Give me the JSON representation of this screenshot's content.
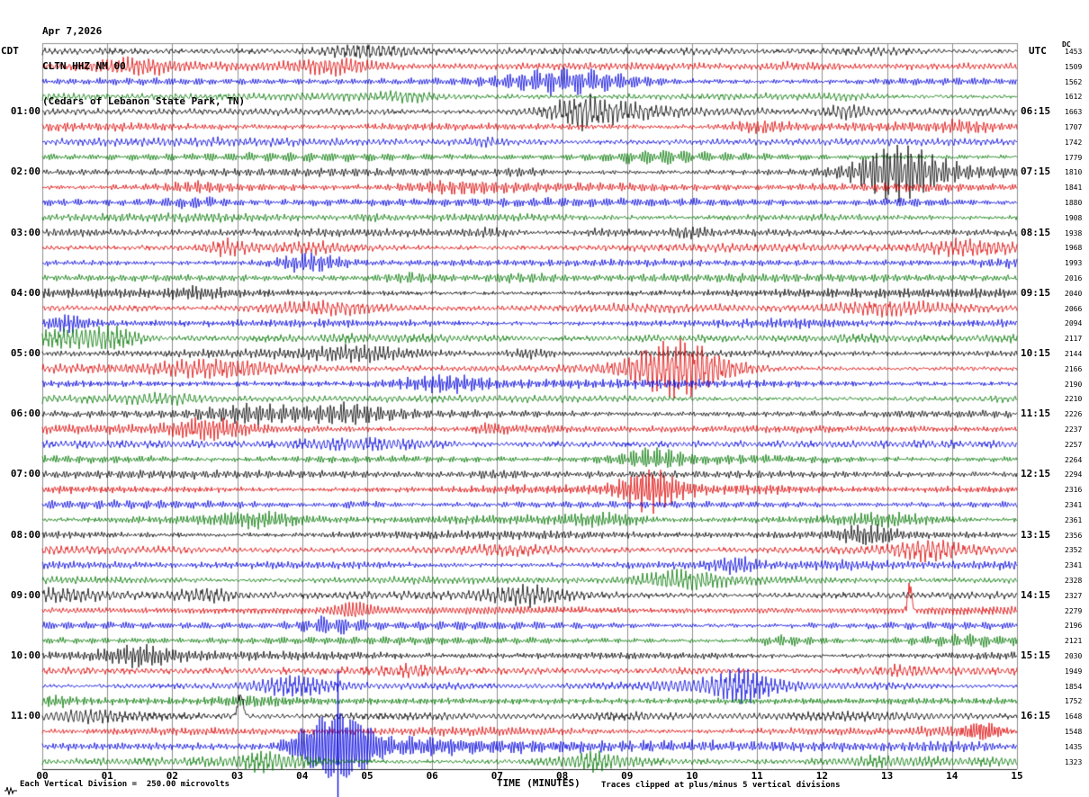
{
  "header": {
    "date": "Apr 7,2026",
    "station_code": "CLTN HHZ NM 00",
    "station_name": "(Cedars of Lebanon State Park, TN)"
  },
  "axis_labels": {
    "left_timezone": "CDT",
    "right_timezone": "UTC",
    "dc_column": "DC",
    "x_axis_title": "TIME (MINUTES)"
  },
  "footer": {
    "scale_note": "Each Vertical Division =  250.00 microvolts",
    "clip_note": "Traces clipped at plus/minus 5 vertical divisions"
  },
  "chart_data": {
    "type": "line",
    "subtype": "helicorder-seismogram",
    "title": "CLTN HHZ NM 00 (Cedars of Lebanon State Park, TN) Apr 7,2026",
    "xlabel": "TIME (MINUTES)",
    "x_range_minutes": [
      0,
      15
    ],
    "rows": 48,
    "minutes_per_row": 15,
    "x_ticks": [
      "00",
      "01",
      "02",
      "03",
      "04",
      "05",
      "06",
      "07",
      "08",
      "09",
      "10",
      "11",
      "12",
      "13",
      "14",
      "15"
    ],
    "trace_color_cycle": [
      "#000000",
      "#dd0000",
      "#0000dd",
      "#007700"
    ],
    "grid_color": "#8f8f8f",
    "left_time_labels": [
      {
        "row": 4,
        "label": "01:00"
      },
      {
        "row": 8,
        "label": "02:00"
      },
      {
        "row": 12,
        "label": "03:00"
      },
      {
        "row": 16,
        "label": "04:00"
      },
      {
        "row": 20,
        "label": "05:00"
      },
      {
        "row": 24,
        "label": "06:00"
      },
      {
        "row": 28,
        "label": "07:00"
      },
      {
        "row": 32,
        "label": "08:00"
      },
      {
        "row": 36,
        "label": "09:00"
      },
      {
        "row": 40,
        "label": "10:00"
      },
      {
        "row": 44,
        "label": "11:00"
      }
    ],
    "right_time_labels": [
      {
        "row": 4,
        "label": "06:15"
      },
      {
        "row": 8,
        "label": "07:15"
      },
      {
        "row": 12,
        "label": "08:15"
      },
      {
        "row": 16,
        "label": "09:15"
      },
      {
        "row": 20,
        "label": "10:15"
      },
      {
        "row": 24,
        "label": "11:15"
      },
      {
        "row": 28,
        "label": "12:15"
      },
      {
        "row": 32,
        "label": "13:15"
      },
      {
        "row": 36,
        "label": "14:15"
      },
      {
        "row": 40,
        "label": "15:15"
      },
      {
        "row": 44,
        "label": "16:15"
      }
    ],
    "dc_offset_values": [
      1453,
      1509,
      1562,
      1612,
      1663,
      1707,
      1742,
      1779,
      1810,
      1841,
      1880,
      1908,
      1938,
      1968,
      1993,
      2016,
      2040,
      2066,
      2094,
      2117,
      2144,
      2166,
      2190,
      2210,
      2226,
      2237,
      2257,
      2264,
      2294,
      2316,
      2341,
      2361,
      2356,
      2352,
      2341,
      2328,
      2327,
      2279,
      2196,
      2121,
      2030,
      1949,
      1854,
      1752,
      1648,
      1548,
      1435,
      1323
    ],
    "events": [
      {
        "row": 37,
        "minute": 13.35,
        "kind": "spike",
        "amplitude": 30,
        "width_minutes": 0.06,
        "sign": 1
      },
      {
        "row": 44,
        "minute": 3.05,
        "kind": "spike",
        "amplitude": 27,
        "width_minutes": 0.08,
        "sign": 1
      },
      {
        "row": 45,
        "minute": 14.45,
        "kind": "burst",
        "amplitude": 9,
        "width_minutes": 0.5
      },
      {
        "row": 46,
        "minute": 4.55,
        "kind": "major",
        "amplitude": 36,
        "width_minutes": 0.9,
        "tail_minutes": 3.5,
        "drop_line": true
      }
    ]
  }
}
